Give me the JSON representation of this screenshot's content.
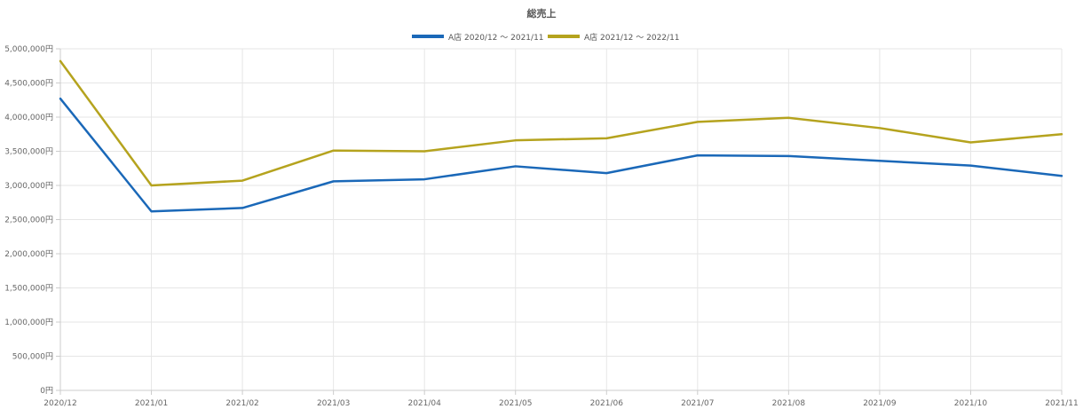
{
  "chart_data": {
    "type": "line",
    "title": "総売上",
    "categories": [
      "2020/12",
      "2021/01",
      "2021/02",
      "2021/03",
      "2021/04",
      "2021/05",
      "2021/06",
      "2021/07",
      "2021/08",
      "2021/09",
      "2021/10",
      "2021/11"
    ],
    "ylim": [
      0,
      5000000
    ],
    "yticks": [
      0,
      500000,
      1000000,
      1500000,
      2000000,
      2500000,
      3000000,
      3500000,
      4000000,
      4500000,
      5000000
    ],
    "ytick_labels": [
      "0円",
      "500,000円",
      "1,000,000円",
      "1,500,000円",
      "2,000,000円",
      "2,500,000円",
      "3,000,000円",
      "3,500,000円",
      "4,000,000円",
      "4,500,000円",
      "5,000,000円"
    ],
    "grid": true,
    "legend_position": "top-center",
    "series": [
      {
        "name": "A店 2020/12 〜 2021/11",
        "color": "#1a68b8",
        "values": [
          4270000,
          2620000,
          2670000,
          3060000,
          3090000,
          3280000,
          3180000,
          3440000,
          3430000,
          3360000,
          3290000,
          3140000
        ]
      },
      {
        "name": "A店 2021/12 〜 2022/11",
        "color": "#b5a31e",
        "values": [
          4820000,
          3000000,
          3070000,
          3510000,
          3500000,
          3660000,
          3690000,
          3930000,
          3990000,
          3840000,
          3630000,
          3750000
        ]
      }
    ]
  }
}
